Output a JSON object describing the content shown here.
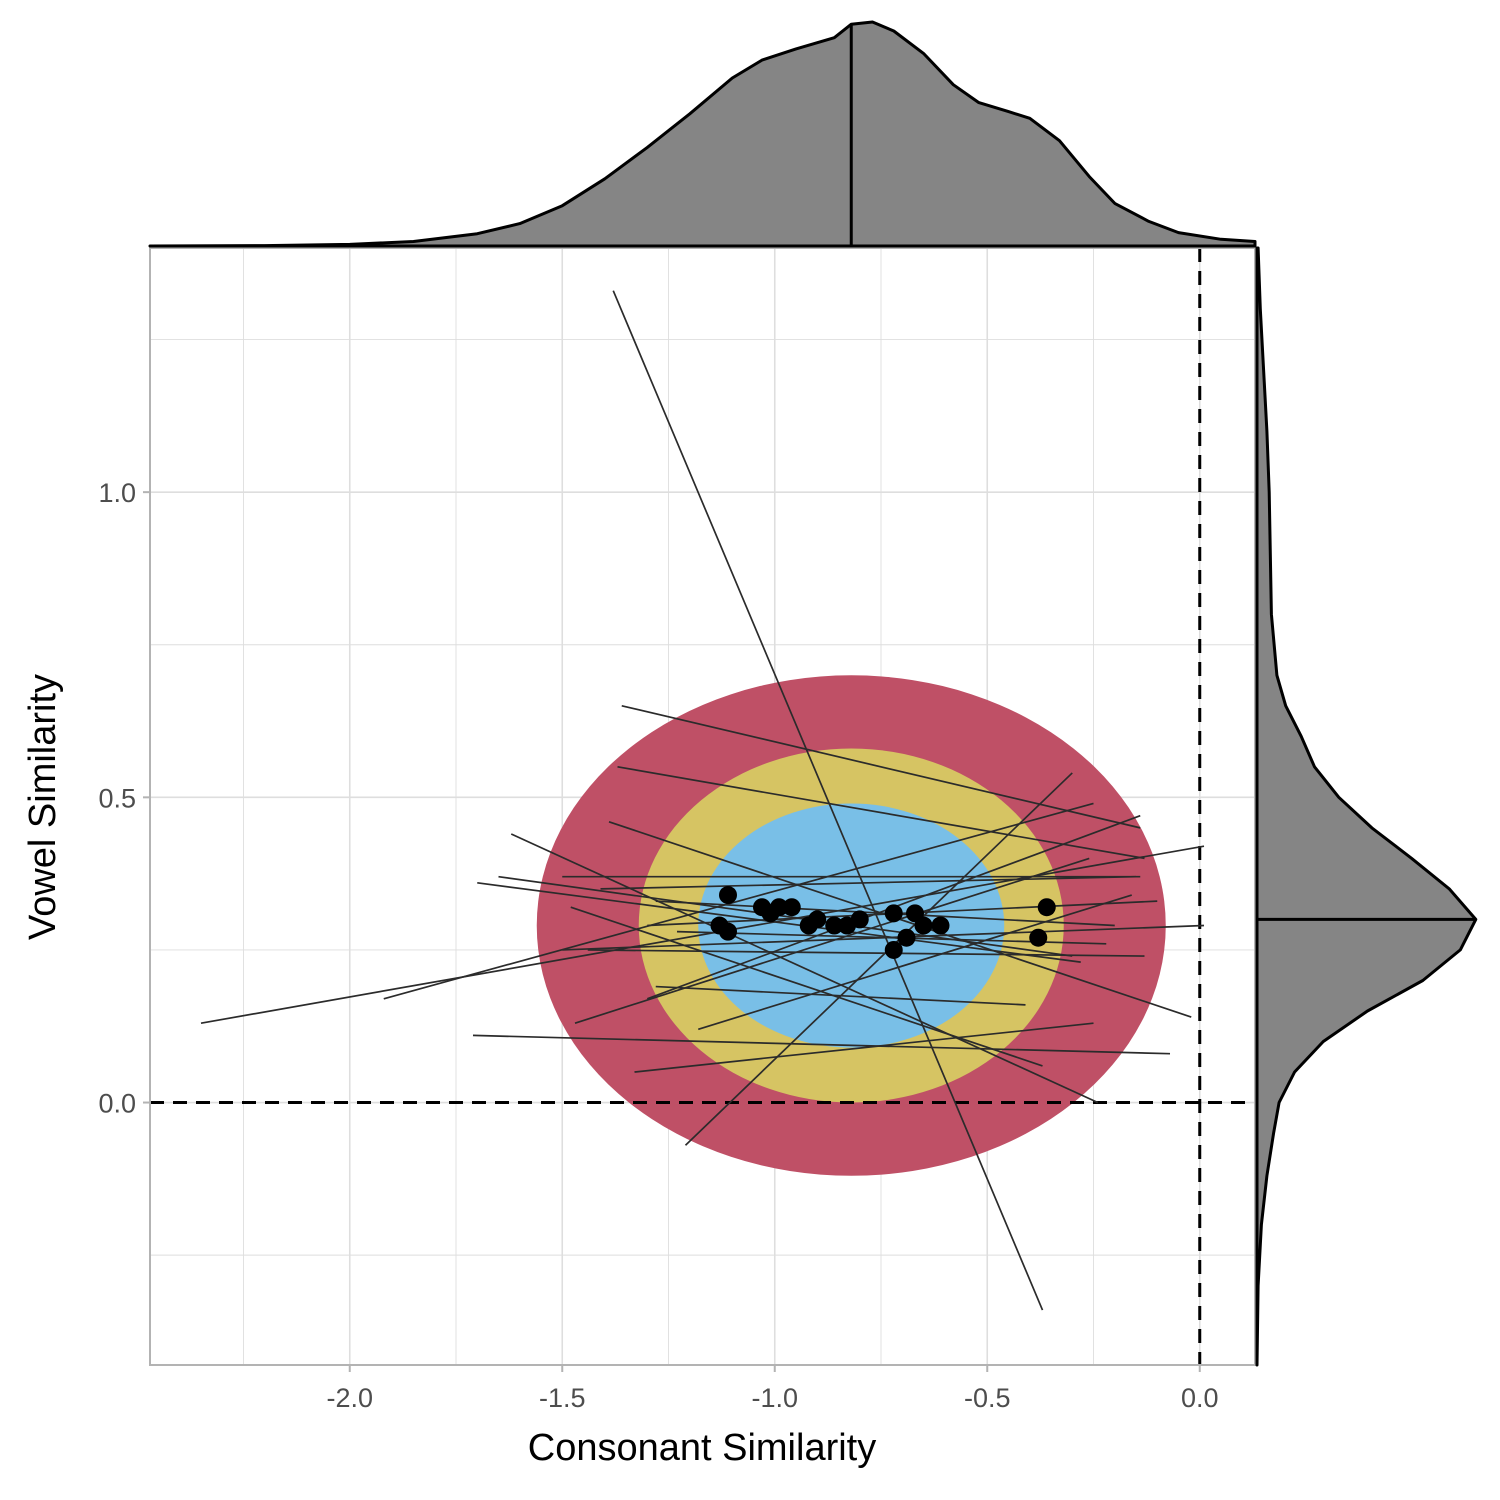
{
  "chart_data": {
    "type": "scatter",
    "xlabel": "Consonant Similarity",
    "ylabel": "Vowel Similarity",
    "xlim": [
      -2.47,
      0.13
    ],
    "ylim": [
      -0.43,
      1.4
    ],
    "x_ticks": [
      -2.0,
      -1.5,
      -1.0,
      -0.5,
      0.0
    ],
    "x_tick_labels": [
      "-2.0",
      "-1.5",
      "-1.0",
      "-0.5",
      "0.0"
    ],
    "y_ticks": [
      0.0,
      0.5,
      1.0
    ],
    "y_tick_labels": [
      "0.0",
      "0.5",
      "1.0"
    ],
    "grid": true,
    "reference_lines": {
      "x": 0.0,
      "y": 0.0,
      "style": "dashed"
    },
    "ellipses": {
      "center": [
        -0.82,
        0.29
      ],
      "levels": [
        {
          "rx": 0.74,
          "ry": 0.41,
          "color": "#BF5066"
        },
        {
          "rx": 0.5,
          "ry": 0.29,
          "color": "#D6C463"
        },
        {
          "rx": 0.36,
          "ry": 0.2,
          "color": "#79BFE7"
        }
      ]
    },
    "points": [
      {
        "x": -1.11,
        "y": 0.34
      },
      {
        "x": -1.13,
        "y": 0.29
      },
      {
        "x": -1.11,
        "y": 0.28
      },
      {
        "x": -1.03,
        "y": 0.32
      },
      {
        "x": -1.01,
        "y": 0.31
      },
      {
        "x": -0.99,
        "y": 0.32
      },
      {
        "x": -0.96,
        "y": 0.32
      },
      {
        "x": -0.9,
        "y": 0.3
      },
      {
        "x": -0.92,
        "y": 0.29
      },
      {
        "x": -0.86,
        "y": 0.29
      },
      {
        "x": -0.83,
        "y": 0.29
      },
      {
        "x": -0.8,
        "y": 0.3
      },
      {
        "x": -0.72,
        "y": 0.31
      },
      {
        "x": -0.67,
        "y": 0.31
      },
      {
        "x": -0.65,
        "y": 0.29
      },
      {
        "x": -0.61,
        "y": 0.29
      },
      {
        "x": -0.69,
        "y": 0.27
      },
      {
        "x": -0.72,
        "y": 0.25
      },
      {
        "x": -0.36,
        "y": 0.32
      },
      {
        "x": -0.38,
        "y": 0.27
      }
    ],
    "segments": [
      [
        -1.38,
        1.33,
        -0.37,
        -0.34
      ],
      [
        -1.36,
        0.65,
        -0.14,
        0.45
      ],
      [
        -1.37,
        0.55,
        -0.13,
        0.4
      ],
      [
        -2.35,
        0.13,
        0.01,
        0.42
      ],
      [
        -1.92,
        0.17,
        -0.25,
        0.49
      ],
      [
        -1.21,
        -0.07,
        -0.3,
        0.54
      ],
      [
        -1.5,
        0.37,
        -0.14,
        0.37
      ],
      [
        -1.7,
        0.36,
        -0.28,
        0.23
      ],
      [
        -1.62,
        0.44,
        -0.24,
        0.0
      ],
      [
        -1.48,
        0.32,
        -0.37,
        0.06
      ],
      [
        -1.39,
        0.46,
        -0.02,
        0.14
      ],
      [
        -1.47,
        0.13,
        -0.26,
        0.4
      ],
      [
        -1.41,
        0.35,
        -0.15,
        0.37
      ],
      [
        -1.3,
        0.17,
        -0.14,
        0.47
      ],
      [
        -1.44,
        0.25,
        -0.13,
        0.24
      ],
      [
        -1.28,
        0.19,
        -0.41,
        0.16
      ],
      [
        -1.71,
        0.11,
        -0.07,
        0.08
      ],
      [
        -1.33,
        0.05,
        -0.25,
        0.13
      ],
      [
        -1.28,
        0.33,
        -0.2,
        0.29
      ],
      [
        -1.18,
        0.12,
        -0.16,
        0.34
      ],
      [
        -1.5,
        0.25,
        0.01,
        0.29
      ],
      [
        -1.23,
        0.28,
        -0.22,
        0.26
      ],
      [
        -1.65,
        0.37,
        -0.3,
        0.24
      ],
      [
        -1.3,
        0.29,
        -0.1,
        0.33
      ]
    ],
    "marginal_x": {
      "fill": "#858585",
      "center_line": -0.82,
      "curve": [
        [
          -2.47,
          0.0
        ],
        [
          -2.2,
          0.002
        ],
        [
          -2.0,
          0.007
        ],
        [
          -1.85,
          0.02
        ],
        [
          -1.7,
          0.055
        ],
        [
          -1.6,
          0.1
        ],
        [
          -1.5,
          0.18
        ],
        [
          -1.4,
          0.3
        ],
        [
          -1.3,
          0.44
        ],
        [
          -1.2,
          0.59
        ],
        [
          -1.1,
          0.75
        ],
        [
          -1.03,
          0.83
        ],
        [
          -0.95,
          0.88
        ],
        [
          -0.86,
          0.93
        ],
        [
          -0.82,
          0.99
        ],
        [
          -0.77,
          1.0
        ],
        [
          -0.72,
          0.96
        ],
        [
          -0.65,
          0.86
        ],
        [
          -0.58,
          0.72
        ],
        [
          -0.52,
          0.64
        ],
        [
          -0.45,
          0.6
        ],
        [
          -0.4,
          0.57
        ],
        [
          -0.33,
          0.47
        ],
        [
          -0.26,
          0.31
        ],
        [
          -0.2,
          0.19
        ],
        [
          -0.12,
          0.11
        ],
        [
          -0.05,
          0.06
        ],
        [
          0.05,
          0.03
        ],
        [
          0.13,
          0.02
        ]
      ]
    },
    "marginal_y": {
      "fill": "#858585",
      "center_line": 0.3,
      "curve": [
        [
          -0.43,
          0.0
        ],
        [
          -0.3,
          0.005
        ],
        [
          -0.2,
          0.02
        ],
        [
          -0.12,
          0.045
        ],
        [
          -0.05,
          0.075
        ],
        [
          0.0,
          0.1
        ],
        [
          0.05,
          0.17
        ],
        [
          0.1,
          0.3
        ],
        [
          0.15,
          0.5
        ],
        [
          0.2,
          0.75
        ],
        [
          0.25,
          0.92
        ],
        [
          0.3,
          0.99
        ],
        [
          0.35,
          0.87
        ],
        [
          0.4,
          0.7
        ],
        [
          0.45,
          0.52
        ],
        [
          0.5,
          0.37
        ],
        [
          0.55,
          0.26
        ],
        [
          0.6,
          0.2
        ],
        [
          0.65,
          0.13
        ],
        [
          0.7,
          0.09
        ],
        [
          0.8,
          0.065
        ],
        [
          0.9,
          0.06
        ],
        [
          1.0,
          0.055
        ],
        [
          1.1,
          0.045
        ],
        [
          1.2,
          0.03
        ],
        [
          1.3,
          0.015
        ],
        [
          1.4,
          0.005
        ]
      ]
    }
  }
}
